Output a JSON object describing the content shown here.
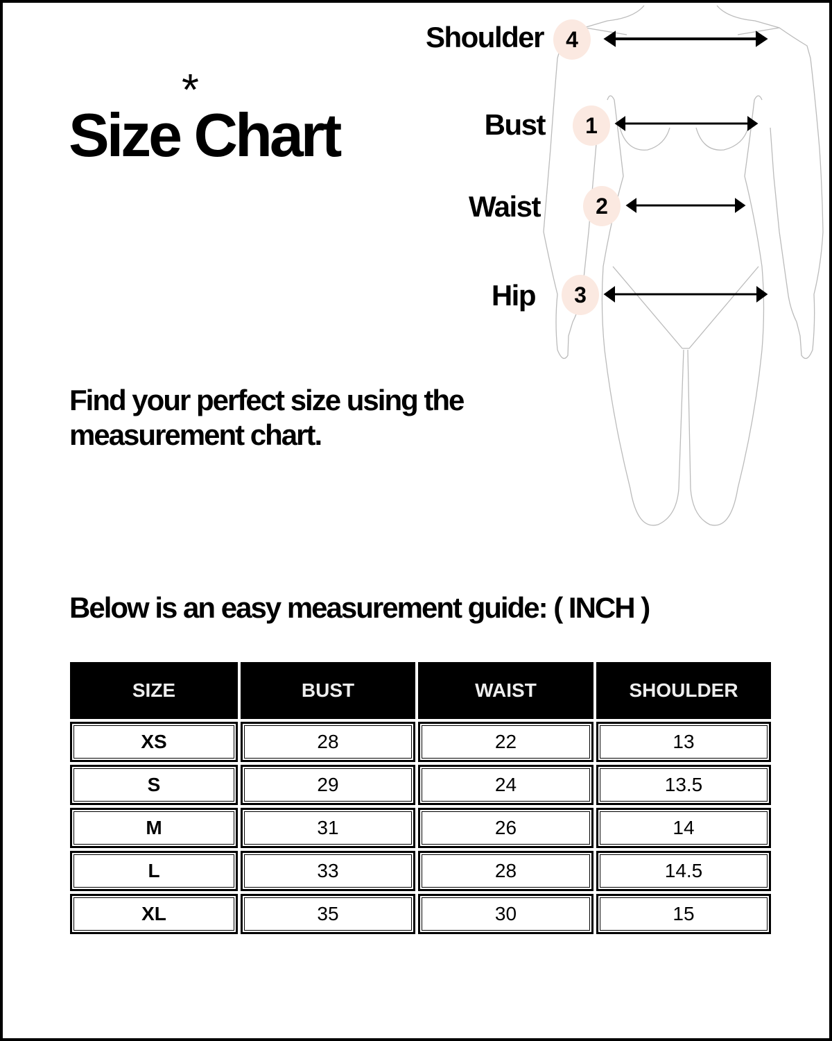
{
  "header": {
    "title": "Size Chart",
    "asterisk": "*"
  },
  "subtitle": "Find your perfect size using the measurement chart.",
  "guide_heading": "Below is an easy measurement guide: ( INCH )",
  "diagram": {
    "measurements": [
      {
        "label": "Shoulder",
        "number": "4"
      },
      {
        "label": "Bust",
        "number": "1"
      },
      {
        "label": "Waist",
        "number": "2"
      },
      {
        "label": "Hip",
        "number": "3"
      }
    ],
    "badge_color": "#fbe9e1"
  },
  "table": {
    "headers": [
      "SIZE",
      "BUST",
      "WAIST",
      "SHOULDER"
    ],
    "rows": [
      [
        "XS",
        "28",
        "22",
        "13"
      ],
      [
        "S",
        "29",
        "24",
        "13.5"
      ],
      [
        "M",
        "31",
        "26",
        "14"
      ],
      [
        "L",
        "33",
        "28",
        "14.5"
      ],
      [
        "XL",
        "35",
        "30",
        "15"
      ]
    ]
  }
}
